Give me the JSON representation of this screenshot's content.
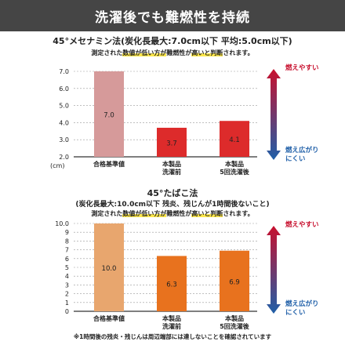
{
  "header": {
    "title": "洗濯後でも難燃性を持続"
  },
  "chart_data": [
    {
      "type": "bar",
      "title": "45°メセナミン法",
      "subtitle": "(炭化長最大:7.0cm以下 平均:5.0cm以下)",
      "note": {
        "pre": "測定された",
        "hl1": "数値が低い方が",
        "mid": "難燃性が",
        "hl2": "高いと判断",
        "post": "されます。"
      },
      "ylabel": "(cm)",
      "ylim": [
        2.0,
        7.0
      ],
      "yticks": [
        "7.0",
        "6.0",
        "5.0",
        "4.0",
        "3.0",
        "2.0"
      ],
      "categories": [
        [
          "合格基準値"
        ],
        [
          "本製品",
          "洗濯前"
        ],
        [
          "本製品",
          "5回洗濯後"
        ]
      ],
      "values": [
        7.0,
        3.7,
        4.1
      ],
      "value_labels": [
        "7.0",
        "3.7",
        "4.1"
      ],
      "bar_colors": [
        "#d69a9a",
        "#dd2b2b",
        "#dd2b2b"
      ],
      "arrow_top": "燃えやすい",
      "arrow_bottom": [
        "燃え広がり",
        "にくい"
      ]
    },
    {
      "type": "bar",
      "title": "45°たばこ法",
      "subtitle": "(炭化長最大:10.0cm以下 残炎、残じんが1時間後ないこと)",
      "note": {
        "pre": "測定された",
        "hl1": "数値が低い方が",
        "mid": "難燃性が",
        "hl2": "高いと判断",
        "post": "されます。"
      },
      "ylim": [
        0,
        10.0
      ],
      "yticks": [
        "10.0",
        "9",
        "8",
        "7",
        "6",
        "5",
        "4",
        "3",
        "2",
        "1",
        "0"
      ],
      "categories": [
        [
          "合格基準値"
        ],
        [
          "本製品",
          "洗濯前"
        ],
        [
          "本製品",
          "5回洗濯後"
        ]
      ],
      "values": [
        10.0,
        6.3,
        6.9
      ],
      "value_labels": [
        "10.0",
        "6.3",
        "6.9"
      ],
      "bar_colors": [
        "#e8a66e",
        "#e8721e",
        "#e8721e"
      ],
      "arrow_top": "燃えやすい",
      "arrow_bottom": [
        "燃え広がり",
        "にくい"
      ]
    }
  ],
  "footnote": "※1時間後の残炎・残じんは周辺端部には達しないことを確認されています",
  "colors": {
    "banner": "#454545",
    "arrow_top": "#c8102e",
    "arrow_bottom": "#1f5fa8",
    "highlight": "#ffe94d"
  }
}
